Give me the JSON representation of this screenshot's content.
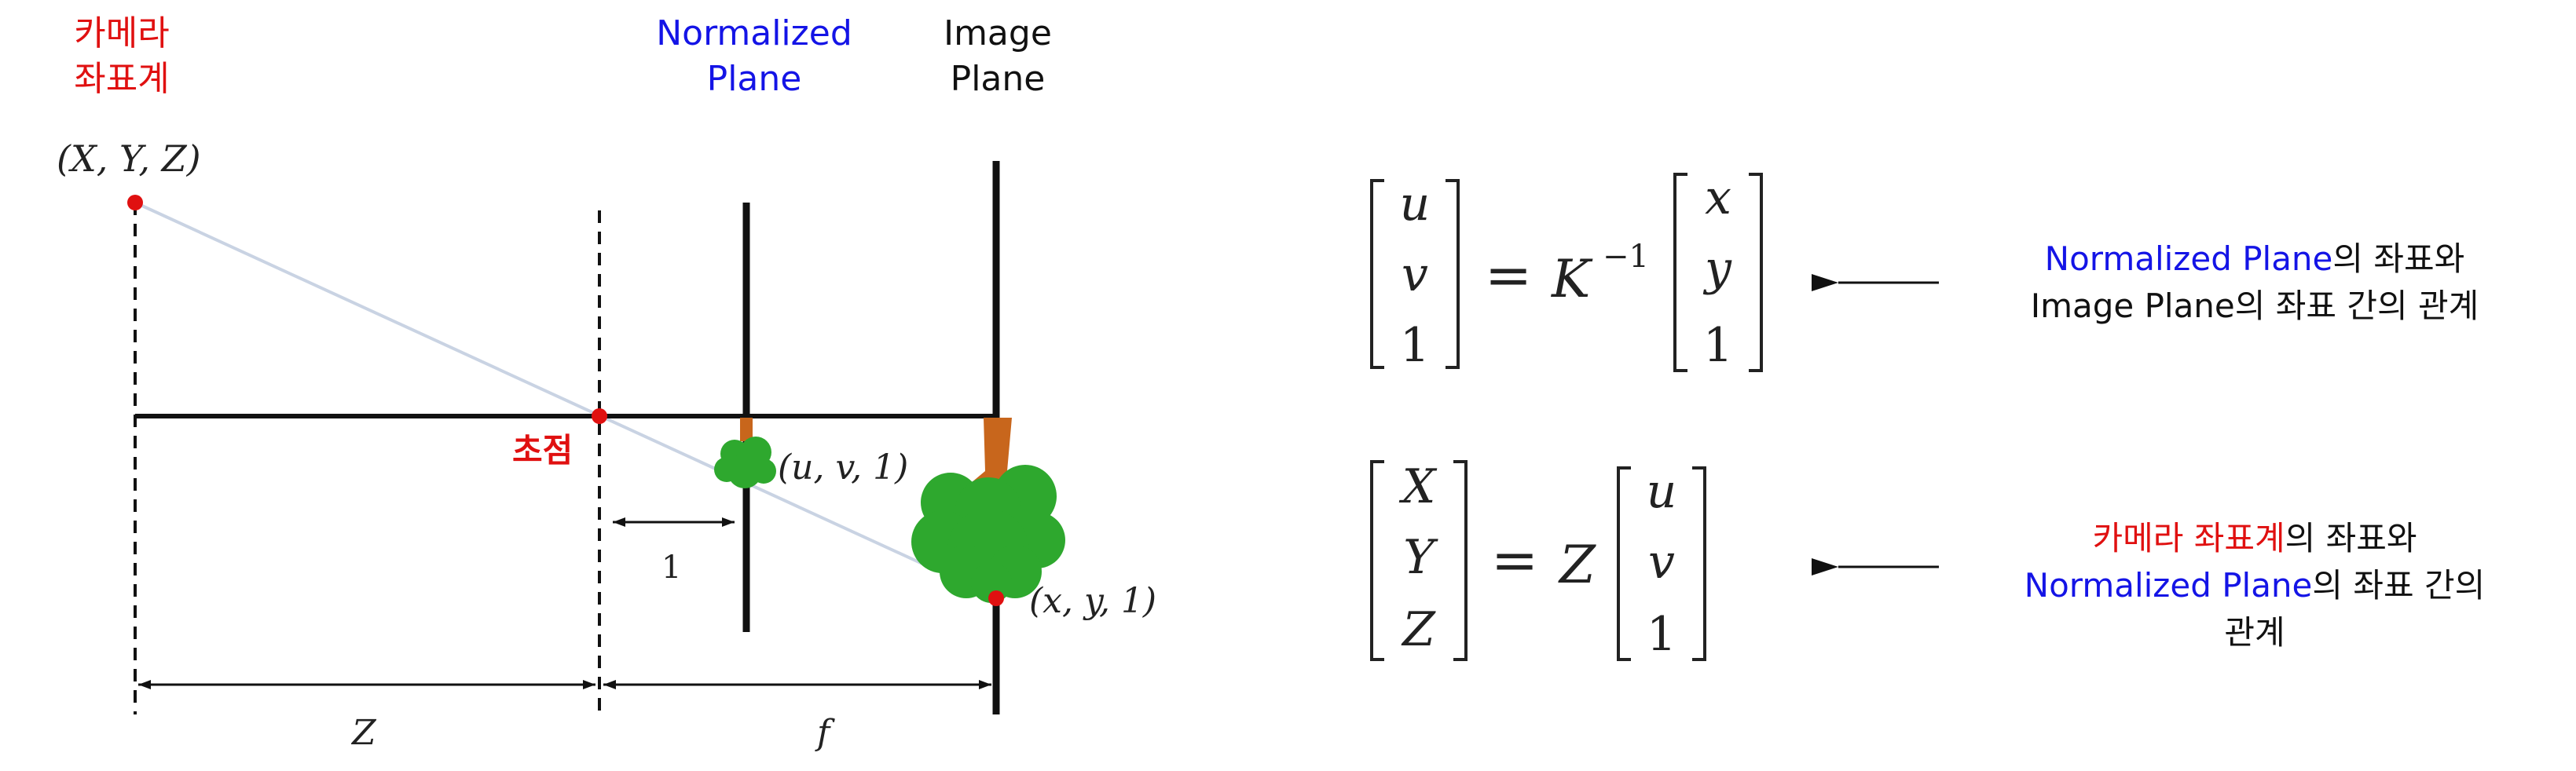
{
  "labels": {
    "camera_line1": "카메라",
    "camera_line2": "좌표계",
    "normalized_line1": "Normalized",
    "normalized_line2": "Plane",
    "image_line1": "Image",
    "image_line2": "Plane",
    "point_xyz": "(X, Y, Z)",
    "focal_point": "초점",
    "point_uv1": "(u, v, 1)",
    "point_xy1": "(x, y, 1)",
    "unit_distance": "1",
    "dist_z": "Z",
    "dist_f": "f"
  },
  "eq1": {
    "lhs": [
      "u",
      "v",
      "1"
    ],
    "rhs_factor": "K",
    "rhs_exp": "−1",
    "rhs": [
      "x",
      "y",
      "1"
    ],
    "equals": "="
  },
  "eq2": {
    "lhs": [
      "X",
      "Y",
      "Z"
    ],
    "rhs_factor": "Z",
    "rhs": [
      "u",
      "v",
      "1"
    ],
    "equals": "="
  },
  "note1": {
    "part1": "Normalized Plane",
    "part2": "의 좌표와",
    "line2": "Image Plane의 좌표 간의 관계"
  },
  "note2": {
    "part1": "카메라 좌표계",
    "part2": "의 좌표와",
    "part3": "Normalized Plane",
    "part4": "의 좌표 간의",
    "line3": "관계"
  },
  "colors": {
    "red": "#e01010",
    "blue": "#1414e6",
    "tree_green": "#2ea82e",
    "trunk": "#c8661c",
    "ray": "#c9d3e3"
  }
}
